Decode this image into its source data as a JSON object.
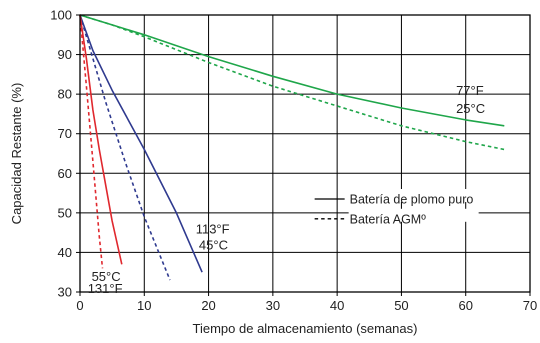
{
  "chart_data": {
    "type": "line",
    "xlabel": "Tiempo de almacenamiento (semanas)",
    "ylabel": "Capacidad Restante (%)",
    "xlim": [
      0,
      70
    ],
    "ylim": [
      30,
      100
    ],
    "x_ticks": [
      "0",
      "10",
      "20",
      "30",
      "40",
      "50",
      "60",
      "70"
    ],
    "y_ticks": [
      "30",
      "40",
      "50",
      "60",
      "70",
      "80",
      "90",
      "100"
    ],
    "grid": true,
    "legend_position": "center-right",
    "legend": [
      {
        "label": "Batería de plomo puro",
        "style": "solid"
      },
      {
        "label": "Batería AGMº",
        "style": "dashed"
      }
    ],
    "series": [
      {
        "color": "#1fa64a",
        "style": "solid",
        "group": "25C",
        "x": [
          0,
          5,
          10,
          20,
          30,
          40,
          50,
          60,
          66
        ],
        "y": [
          100,
          97.5,
          95,
          89.5,
          84.5,
          80,
          76.5,
          73.5,
          72
        ]
      },
      {
        "color": "#1fa64a",
        "style": "dashed",
        "group": "25C",
        "x": [
          0,
          5,
          10,
          20,
          30,
          40,
          50,
          60,
          66
        ],
        "y": [
          100,
          97.5,
          94.5,
          88,
          82,
          77,
          72,
          68,
          66
        ]
      },
      {
        "color": "#2f3a8f",
        "style": "solid",
        "group": "45C",
        "x": [
          0,
          2,
          5,
          10,
          15,
          19
        ],
        "y": [
          100,
          91,
          81,
          66,
          50,
          35
        ]
      },
      {
        "color": "#2f3a8f",
        "style": "dashed",
        "group": "45C",
        "x": [
          0,
          2,
          4,
          7,
          10,
          14
        ],
        "y": [
          100,
          89,
          78,
          63,
          49,
          33
        ]
      },
      {
        "color": "#e0282e",
        "style": "solid",
        "group": "55C",
        "x": [
          0,
          1,
          2,
          3,
          4,
          5,
          6.5
        ],
        "y": [
          100,
          89,
          76,
          66,
          57,
          48,
          37
        ]
      },
      {
        "color": "#e0282e",
        "style": "dashed",
        "group": "55C",
        "x": [
          0,
          1,
          2,
          3,
          3.5
        ],
        "y": [
          100,
          82,
          63,
          44,
          36
        ]
      }
    ],
    "annotations": [
      {
        "text": "77°F",
        "x": 58.5,
        "y": 81
      },
      {
        "text": "25°C",
        "x": 58.5,
        "y": 76.5
      },
      {
        "text": "113°F",
        "x": 18,
        "y": 46
      },
      {
        "text": "45°C",
        "x": 18.5,
        "y": 42
      },
      {
        "text": "55°C",
        "x": 1.8,
        "y": 34
      },
      {
        "text": "131°F",
        "x": 1.2,
        "y": 31
      }
    ]
  }
}
